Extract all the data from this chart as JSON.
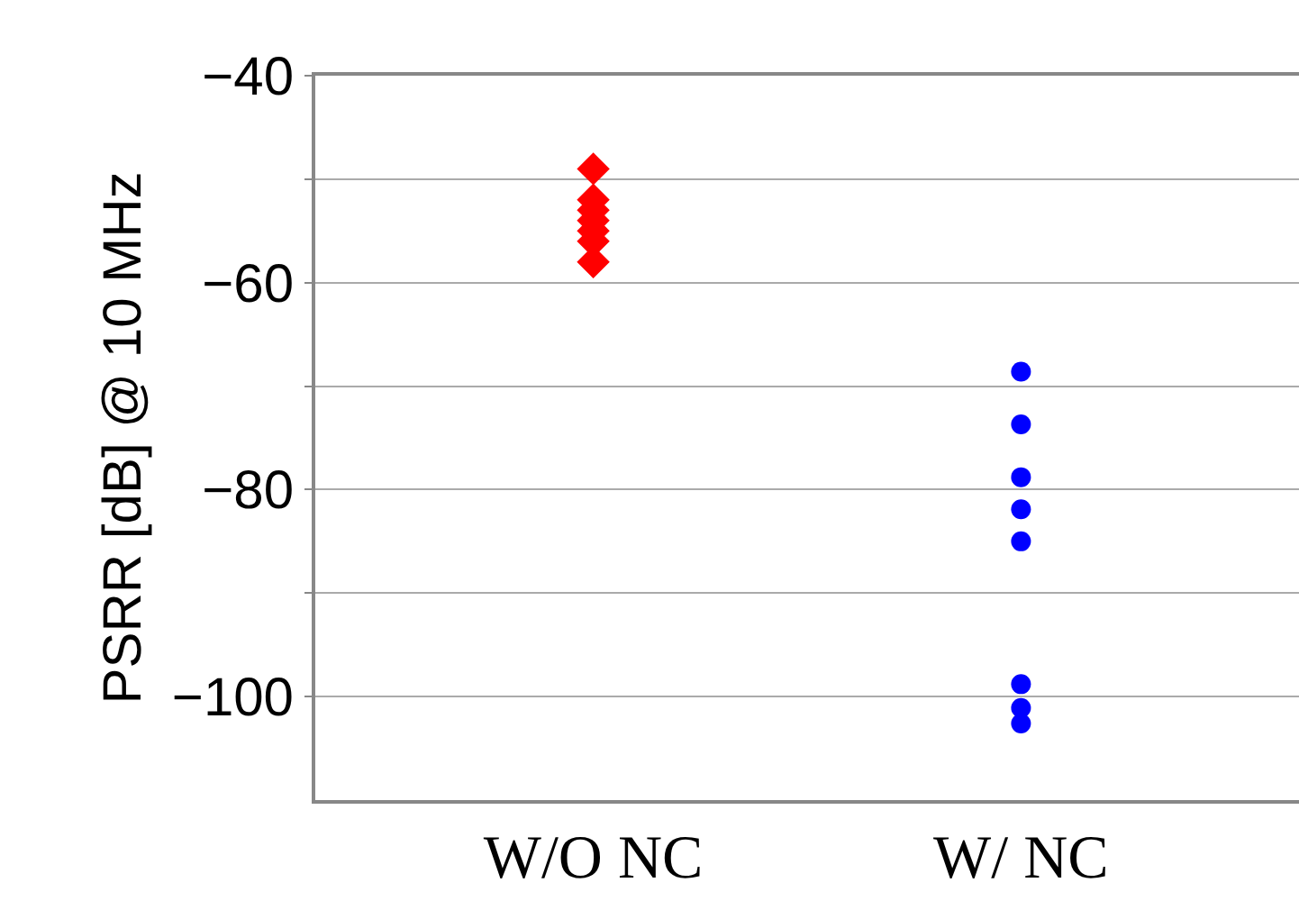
{
  "chart_data": {
    "type": "scatter",
    "categories": [
      "W/O NC",
      "W/ NC"
    ],
    "ylabel": "PSRR [dB] @ 10 MHz",
    "series": [
      {
        "color": "#ff0000",
        "marker": "diamond",
        "x": [
          "W/O NC",
          "W/O NC",
          "W/O NC",
          "W/O NC",
          "W/O NC",
          "W/O NC",
          "W/O NC"
        ],
        "values": [
          -49,
          -52,
          -53,
          -54,
          -55,
          -56,
          -58
        ]
      },
      {
        "color": "#0000ff",
        "marker": "circle",
        "x": [
          "W/ NC",
          "W/ NC",
          "W/ NC",
          "W/ NC",
          "W/ NC",
          "W/ NC",
          "W/ NC",
          "W/ NC"
        ],
        "values": [
          -68.6,
          -73.7,
          -78.8,
          -81.9,
          -85,
          -98.8,
          -101.1,
          -102.6
        ]
      }
    ],
    "ylim": [
      -110,
      -40
    ],
    "yticks": [
      -40,
      {
        "value": -50,
        "label": null
      },
      -60,
      {
        "value": -70,
        "label": null
      },
      -80,
      {
        "value": -90,
        "label": null
      },
      -100
    ],
    "grid": "y"
  }
}
